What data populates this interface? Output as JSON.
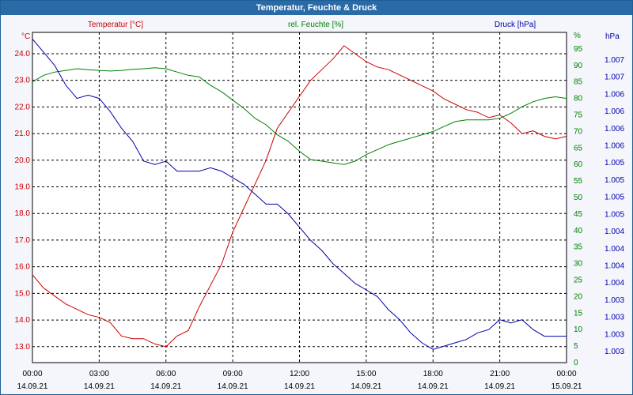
{
  "window": {
    "title": "Temperatur, Feuchte & Druck"
  },
  "chart_data": {
    "type": "line",
    "grid": true,
    "x_ticks": [
      {
        "time": "00:00",
        "date": "14.09.21"
      },
      {
        "time": "03:00",
        "date": "14.09.21"
      },
      {
        "time": "06:00",
        "date": "14.09.21"
      },
      {
        "time": "09:00",
        "date": "14.09.21"
      },
      {
        "time": "12:00",
        "date": "14.09.21"
      },
      {
        "time": "15:00",
        "date": "14.09.21"
      },
      {
        "time": "18:00",
        "date": "14.09.21"
      },
      {
        "time": "21:00",
        "date": "14.09.21"
      },
      {
        "time": "00:00",
        "date": "15.09.21"
      }
    ],
    "x_range_hours": [
      0,
      24
    ],
    "axes": {
      "left": {
        "unit": "°C",
        "ylim": [
          12.4,
          24.8
        ],
        "ticks": [
          "13.0",
          "14.0",
          "15.0",
          "16.0",
          "17.0",
          "18.0",
          "19.0",
          "20.0",
          "21.0",
          "22.0",
          "23.0",
          "24.0"
        ],
        "color": "#cc0000"
      },
      "right": {
        "unit": "%",
        "ylim": [
          0,
          100
        ],
        "ticks": [
          "0",
          "5",
          "10",
          "15",
          "20",
          "25",
          "30",
          "35",
          "40",
          "45",
          "50",
          "55",
          "60",
          "65",
          "70",
          "75",
          "80",
          "85",
          "90",
          "95"
        ],
        "color": "#008000"
      },
      "far_right": {
        "unit": "hPa",
        "ticks": [
          "1.003",
          "1.003",
          "1.003",
          "1.003",
          "1.004",
          "1.004",
          "1.004",
          "1.004",
          "1.005",
          "1.005",
          "1.005",
          "1.005",
          "1.006",
          "1.006",
          "1.006",
          "1.006",
          "1.007",
          "1.007"
        ],
        "color": "#0000aa"
      }
    },
    "series": [
      {
        "name": "Temperatur [°C]",
        "axis": "left",
        "color": "#cc0000",
        "points": [
          [
            0,
            15.7
          ],
          [
            0.5,
            15.2
          ],
          [
            1,
            14.9
          ],
          [
            1.5,
            14.6
          ],
          [
            2,
            14.4
          ],
          [
            2.5,
            14.2
          ],
          [
            3,
            14.1
          ],
          [
            3.5,
            13.9
          ],
          [
            4,
            13.4
          ],
          [
            4.5,
            13.3
          ],
          [
            5,
            13.3
          ],
          [
            5.5,
            13.1
          ],
          [
            6,
            13.0
          ],
          [
            6.5,
            13.4
          ],
          [
            7,
            13.6
          ],
          [
            7.5,
            14.5
          ],
          [
            8,
            15.3
          ],
          [
            8.5,
            16.1
          ],
          [
            9,
            17.3
          ],
          [
            9.5,
            18.2
          ],
          [
            10,
            19.1
          ],
          [
            10.5,
            20.0
          ],
          [
            11,
            21.2
          ],
          [
            11.5,
            21.8
          ],
          [
            12,
            22.4
          ],
          [
            12.5,
            23.0
          ],
          [
            13,
            23.4
          ],
          [
            13.5,
            23.8
          ],
          [
            14,
            24.3
          ],
          [
            14.5,
            24.0
          ],
          [
            15,
            23.7
          ],
          [
            15.5,
            23.5
          ],
          [
            16,
            23.4
          ],
          [
            16.5,
            23.2
          ],
          [
            17,
            23.0
          ],
          [
            17.5,
            22.8
          ],
          [
            18,
            22.6
          ],
          [
            18.5,
            22.3
          ],
          [
            19,
            22.1
          ],
          [
            19.5,
            21.9
          ],
          [
            20,
            21.8
          ],
          [
            20.5,
            21.6
          ],
          [
            21,
            21.7
          ],
          [
            21.5,
            21.4
          ],
          [
            22,
            21.0
          ],
          [
            22.5,
            21.1
          ],
          [
            23,
            20.9
          ],
          [
            23.5,
            20.8
          ],
          [
            24,
            20.9
          ]
        ]
      },
      {
        "name": "rel. Feuchte [%]",
        "axis": "right",
        "color": "#008000",
        "points": [
          [
            0,
            85
          ],
          [
            0.5,
            87
          ],
          [
            1,
            88
          ],
          [
            1.5,
            88.5
          ],
          [
            2,
            89
          ],
          [
            2.5,
            88.7
          ],
          [
            3,
            88.5
          ],
          [
            3.5,
            88.3
          ],
          [
            4,
            88.5
          ],
          [
            4.5,
            88.8
          ],
          [
            5,
            89
          ],
          [
            5.5,
            89.3
          ],
          [
            6,
            89
          ],
          [
            6.5,
            88
          ],
          [
            7,
            87
          ],
          [
            7.5,
            86.5
          ],
          [
            8,
            84
          ],
          [
            8.5,
            82
          ],
          [
            9,
            79.5
          ],
          [
            9.5,
            77
          ],
          [
            10,
            74
          ],
          [
            10.5,
            72
          ],
          [
            11,
            69
          ],
          [
            11.5,
            67
          ],
          [
            12,
            64
          ],
          [
            12.5,
            61.5
          ],
          [
            13,
            61
          ],
          [
            13.5,
            60.5
          ],
          [
            14,
            60
          ],
          [
            14.5,
            61
          ],
          [
            15,
            63
          ],
          [
            15.5,
            64.5
          ],
          [
            16,
            66
          ],
          [
            16.5,
            67
          ],
          [
            17,
            68
          ],
          [
            17.5,
            69
          ],
          [
            18,
            70
          ],
          [
            18.5,
            71.5
          ],
          [
            19,
            73
          ],
          [
            19.5,
            73.5
          ],
          [
            20,
            73.5
          ],
          [
            20.5,
            73.5
          ],
          [
            21,
            74
          ],
          [
            21.5,
            75.5
          ],
          [
            22,
            77.5
          ],
          [
            22.5,
            79
          ],
          [
            23,
            80
          ],
          [
            23.5,
            80.5
          ],
          [
            24,
            80
          ]
        ]
      },
      {
        "name": "Druck [hPa]",
        "axis": "far_right",
        "color": "#0000aa",
        "points": [
          [
            0,
            98
          ],
          [
            0.5,
            94
          ],
          [
            1,
            90
          ],
          [
            1.5,
            84
          ],
          [
            2,
            80
          ],
          [
            2.5,
            81
          ],
          [
            3,
            80
          ],
          [
            3.5,
            76
          ],
          [
            4,
            71
          ],
          [
            4.5,
            67
          ],
          [
            5,
            61
          ],
          [
            5.5,
            60
          ],
          [
            6,
            61
          ],
          [
            6.5,
            58
          ],
          [
            7,
            58
          ],
          [
            7.5,
            58
          ],
          [
            8,
            59
          ],
          [
            8.5,
            58
          ],
          [
            9,
            56
          ],
          [
            9.5,
            54
          ],
          [
            10,
            51
          ],
          [
            10.5,
            48
          ],
          [
            11,
            48
          ],
          [
            11.5,
            45
          ],
          [
            12,
            41
          ],
          [
            12.5,
            37
          ],
          [
            13,
            34
          ],
          [
            13.5,
            30
          ],
          [
            14,
            27
          ],
          [
            14.5,
            24
          ],
          [
            15,
            22
          ],
          [
            15.5,
            20
          ],
          [
            16,
            16
          ],
          [
            16.5,
            13
          ],
          [
            17,
            9
          ],
          [
            17.5,
            6
          ],
          [
            18,
            4
          ],
          [
            18.5,
            5
          ],
          [
            19,
            6
          ],
          [
            19.5,
            7
          ],
          [
            20,
            9
          ],
          [
            20.5,
            10
          ],
          [
            21,
            13
          ],
          [
            21.5,
            12
          ],
          [
            22,
            13
          ],
          [
            22.5,
            10
          ],
          [
            23,
            8
          ],
          [
            23.5,
            8
          ],
          [
            24,
            8
          ]
        ]
      }
    ]
  }
}
